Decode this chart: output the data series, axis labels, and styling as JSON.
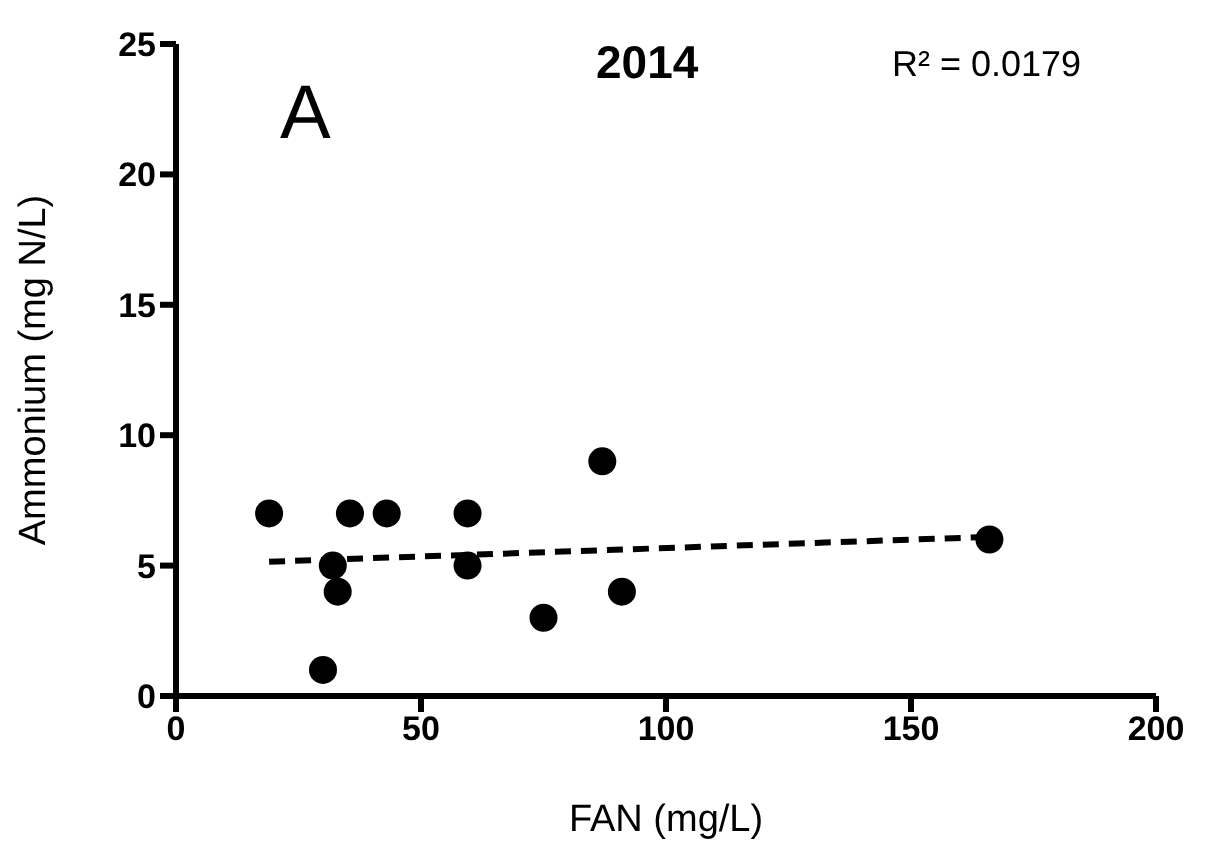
{
  "chart_data": {
    "type": "scatter",
    "title": "2014",
    "xlabel": "FAN (mg/L)",
    "ylabel": "Ammonium (mg N/L)",
    "annotations": [
      "A",
      "R² = 0.0179"
    ],
    "xlim": [
      0,
      200
    ],
    "xticks": [
      0,
      50,
      100,
      150,
      200
    ],
    "ylim": [
      0,
      25
    ],
    "yticks": [
      0,
      5,
      10,
      15,
      20,
      25
    ],
    "series": [
      {
        "color": "#000000",
        "marker": "circle",
        "x": [
          19,
          30,
          32,
          33,
          35.5,
          43,
          59.5,
          59.5,
          75,
          87,
          91,
          166
        ],
        "values": [
          7,
          1,
          5,
          4,
          7,
          7,
          7,
          5,
          3,
          9,
          4,
          6
        ]
      },
      {
        "type": "line",
        "color": "#000000",
        "marker": "none",
        "line_style": "dashed",
        "x": [
          19,
          166
        ],
        "values": [
          5.15,
          6.1
        ]
      }
    ]
  }
}
